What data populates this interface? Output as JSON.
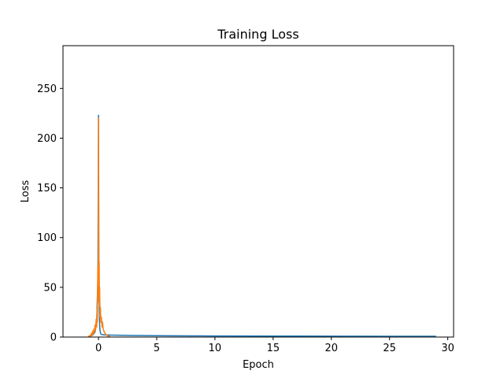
{
  "chart_data": {
    "type": "line",
    "title": "Training Loss",
    "xlabel": "Epoch",
    "ylabel": "Loss",
    "xlim": [
      -3.05,
      30.5
    ],
    "ylim": [
      0,
      293
    ],
    "xticks": [
      0,
      5,
      10,
      15,
      20,
      25,
      30
    ],
    "yticks": [
      0,
      50,
      100,
      150,
      200,
      250
    ],
    "grid": false,
    "legend": "none",
    "series": [
      {
        "color": "#1f77b4",
        "x": [
          -0.8,
          -0.5,
          -0.3,
          -0.15,
          -0.05,
          0,
          0.03,
          0.06,
          0.1,
          0.15,
          0.2,
          0.3,
          0.5,
          1,
          2,
          3,
          5,
          8,
          10,
          15,
          20,
          25,
          29
        ],
        "y": [
          0.5,
          2,
          5,
          18,
          60,
          223,
          80,
          30,
          10,
          5,
          3,
          2.5,
          2.2,
          2.0,
          1.8,
          1.6,
          1.4,
          1.2,
          1.1,
          1.0,
          0.9,
          0.8,
          0.8
        ]
      },
      {
        "color": "#ff7f0e",
        "x": [
          -0.9,
          -0.8,
          -0.75,
          -0.7,
          -0.65,
          -0.6,
          -0.55,
          -0.5,
          -0.45,
          -0.4,
          -0.35,
          -0.3,
          -0.25,
          -0.2,
          -0.15,
          -0.12,
          -0.1,
          -0.08,
          -0.06,
          -0.04,
          -0.02,
          0,
          0.02,
          0.04,
          0.06,
          0.08,
          0.1,
          0.13,
          0.16,
          0.2,
          0.25,
          0.3,
          0.35,
          0.4,
          0.5,
          0.6,
          0.8,
          1.0
        ],
        "y": [
          0.5,
          1,
          0.5,
          2,
          1,
          4,
          2,
          6,
          3,
          8,
          5,
          12,
          7,
          18,
          10,
          28,
          15,
          40,
          70,
          35,
          60,
          220,
          82,
          40,
          75,
          30,
          50,
          20,
          30,
          15,
          20,
          10,
          15,
          8,
          5,
          3,
          1,
          0.5
        ]
      }
    ]
  }
}
